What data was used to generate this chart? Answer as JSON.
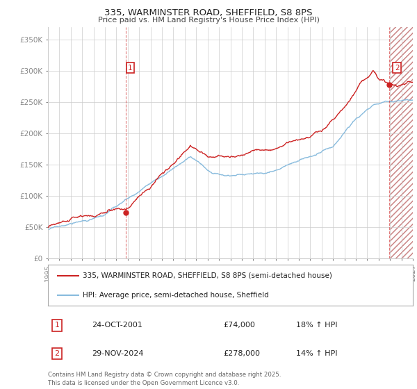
{
  "title1": "335, WARMINSTER ROAD, SHEFFIELD, S8 8PS",
  "title2": "Price paid vs. HM Land Registry's House Price Index (HPI)",
  "ylim": [
    0,
    370000
  ],
  "yticks": [
    0,
    50000,
    100000,
    150000,
    200000,
    250000,
    300000,
    350000
  ],
  "ytick_labels": [
    "£0",
    "£50K",
    "£100K",
    "£150K",
    "£200K",
    "£250K",
    "£300K",
    "£350K"
  ],
  "hpi_color": "#88bbdd",
  "price_color": "#cc2222",
  "marker1_x": 2001.82,
  "marker1_y": 74000,
  "marker2_x": 2024.92,
  "marker2_y": 278000,
  "annotation1_label": "1",
  "annotation2_label": "2",
  "legend_line1": "335, WARMINSTER ROAD, SHEFFIELD, S8 8PS (semi-detached house)",
  "legend_line2": "HPI: Average price, semi-detached house, Sheffield",
  "footnote": "Contains HM Land Registry data © Crown copyright and database right 2025.\nThis data is licensed under the Open Government Licence v3.0.",
  "table_row1": [
    "1",
    "24-OCT-2001",
    "£74,000",
    "18% ↑ HPI"
  ],
  "table_row2": [
    "2",
    "29-NOV-2024",
    "£278,000",
    "14% ↑ HPI"
  ],
  "bg_color": "#ffffff",
  "grid_color": "#cccccc",
  "hatch_fill_color": "#f5e8e8",
  "xlim_start": 1995,
  "xlim_end": 2027,
  "future_start": 2025.0
}
